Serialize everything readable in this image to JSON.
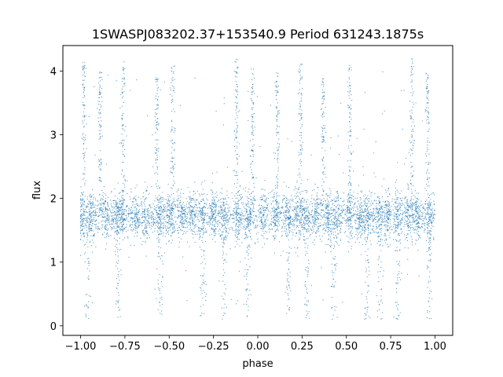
{
  "chart_data": {
    "type": "scatter",
    "title": "1SWASPJ083202.37+153540.9 Period 631243.1875s",
    "xlabel": "phase",
    "ylabel": "flux",
    "xlim": [
      -1.1,
      1.1
    ],
    "ylim": [
      -0.15,
      4.4
    ],
    "x_ticks": [
      -1.0,
      -0.75,
      -0.5,
      -0.25,
      0.0,
      0.25,
      0.5,
      0.75,
      1.0
    ],
    "x_tick_labels": [
      "−1.00",
      "−0.75",
      "−0.50",
      "−0.25",
      "0.00",
      "0.25",
      "0.50",
      "0.75",
      "1.00"
    ],
    "y_ticks": [
      0,
      1,
      2,
      3,
      4
    ],
    "y_tick_labels": [
      "0",
      "1",
      "2",
      "3",
      "4"
    ],
    "grid": false,
    "legend": "none",
    "point_color": "#1f77b4",
    "baseline_flux": 1.72,
    "baseline_spread": 0.17,
    "flare_spikes": [
      {
        "phase": -0.98,
        "peak_flux": 4.15
      },
      {
        "phase": -0.89,
        "peak_flux": 4.0
      },
      {
        "phase": -0.76,
        "peak_flux": 4.15
      },
      {
        "phase": -0.57,
        "peak_flux": 3.9
      },
      {
        "phase": -0.48,
        "peak_flux": 4.1
      },
      {
        "phase": -0.12,
        "peak_flux": 4.2
      },
      {
        "phase": -0.03,
        "peak_flux": 4.05
      },
      {
        "phase": 0.11,
        "peak_flux": 4.0
      },
      {
        "phase": 0.24,
        "peak_flux": 4.15
      },
      {
        "phase": 0.37,
        "peak_flux": 3.9
      },
      {
        "phase": 0.52,
        "peak_flux": 4.1
      },
      {
        "phase": 0.87,
        "peak_flux": 4.2
      },
      {
        "phase": 0.96,
        "peak_flux": 4.0
      }
    ],
    "dip_phases": [
      -0.96,
      -0.79,
      -0.55,
      -0.31,
      -0.19,
      -0.06,
      0.17,
      0.28,
      0.43,
      0.62,
      0.69,
      0.79,
      0.97
    ],
    "cluster_phases": [
      -0.99,
      -0.94,
      -0.86,
      -0.8,
      -0.77,
      -0.69,
      -0.63,
      -0.55,
      -0.5,
      -0.43,
      -0.37,
      -0.31,
      -0.25,
      -0.19,
      -0.11,
      -0.05,
      0.03,
      0.1,
      0.17,
      0.22,
      0.26,
      0.33,
      0.4,
      0.45,
      0.52,
      0.58,
      0.62,
      0.68,
      0.73,
      0.79,
      0.85,
      0.9,
      0.97
    ]
  }
}
